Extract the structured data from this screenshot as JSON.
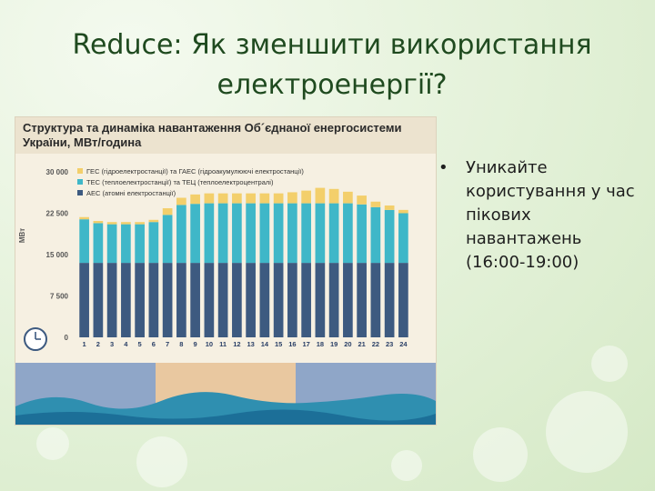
{
  "slide": {
    "title_line1": "Reduce: Як зменшити використання",
    "title_line2": "електроенергії?",
    "bullet_text": "Уникайте користування у час пікових навантажень (16:00-19:00)"
  },
  "chart_data": {
    "type": "bar",
    "title": "Структура та динаміка навантаження Об´єднаної енергосистеми України, МВт/година",
    "title_line1": "Структура та динаміка навантаження Об´єднаної енергосистеми",
    "title_line2": "України, МВт/година",
    "ylabel": "МВт",
    "ylim": [
      0,
      30000
    ],
    "yticks": [
      "0",
      "7 500",
      "15 000",
      "22 500",
      "30 000"
    ],
    "categories": [
      "1",
      "2",
      "3",
      "4",
      "5",
      "6",
      "7",
      "8",
      "9",
      "10",
      "11",
      "12",
      "13",
      "14",
      "15",
      "16",
      "17",
      "18",
      "19",
      "20",
      "21",
      "22",
      "23",
      "24"
    ],
    "series": [
      {
        "name": "АЕС (атомні електростанції)",
        "color": "#3d5a80",
        "values": [
          13500,
          13500,
          13500,
          13500,
          13500,
          13500,
          13500,
          13500,
          13500,
          13500,
          13500,
          13500,
          13500,
          13500,
          13500,
          13500,
          13500,
          13500,
          13500,
          13500,
          13500,
          13500,
          13500,
          13500
        ]
      },
      {
        "name": "ТЕС (теплоелектростанції) та ТЕЦ (теплоелектроцентралі)",
        "color": "#3fb7c8",
        "values": [
          7900,
          7200,
          7000,
          7000,
          7000,
          7400,
          8700,
          10500,
          10700,
          10800,
          10800,
          10800,
          10800,
          10800,
          10800,
          10800,
          10800,
          10800,
          10800,
          10800,
          10600,
          10100,
          9600,
          9000
        ]
      },
      {
        "name": "ГЕС (гідроелектростанції) та ГАЕС (гідроакумулюючі електростанції)",
        "color": "#f3cf6b",
        "values": [
          400,
          400,
          400,
          400,
          400,
          400,
          1200,
          1300,
          1700,
          1800,
          1800,
          1800,
          1800,
          1800,
          1800,
          2000,
          2300,
          2800,
          2600,
          2100,
          1600,
          1000,
          800,
          600
        ]
      }
    ],
    "legend_position": "top-left",
    "grid": false
  },
  "icons": {
    "clock": "clock-icon"
  }
}
